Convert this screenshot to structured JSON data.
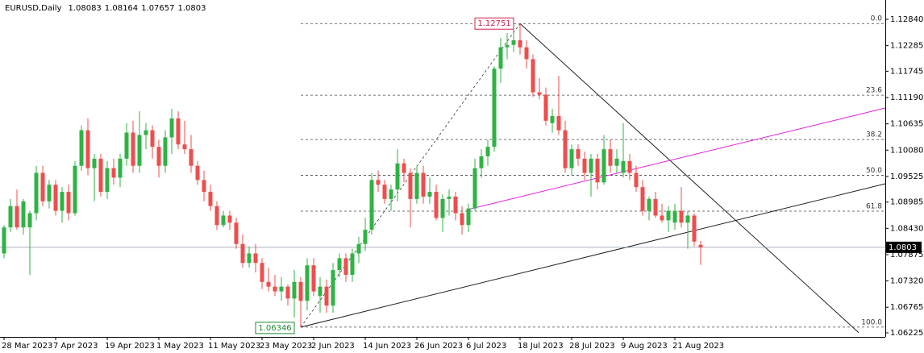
{
  "chart_data": {
    "type": "candlestick",
    "title": "EURUSD,Daily",
    "up_color": "#2fb344",
    "down_color": "#ef4d4d",
    "xlim": [
      -0.625,
      136.625
    ],
    "ylim": [
      1.0614,
      1.13248
    ],
    "yticks": [
      {
        "value": 1.1284,
        "label": "1.12840"
      },
      1.12285,
      1.11745,
      {
        "value": 1.1119,
        "label": "1.11190"
      },
      1.10635,
      {
        "value": 1.1008,
        "label": "1.10080"
      },
      1.09525,
      1.08985,
      {
        "value": 1.0843,
        "label": "1.08430"
      },
      1.07875,
      {
        "value": 1.0732,
        "label": "1.07320"
      },
      1.06765,
      1.06225
    ],
    "xticks": [
      {
        "value": 0,
        "label": "28 Mar 2023"
      },
      {
        "value": 8,
        "label": "7 Apr 2023"
      },
      {
        "value": 16,
        "label": "19 Apr 2023"
      },
      {
        "value": 24,
        "label": "1 May 2023"
      },
      {
        "value": 32,
        "label": "11 May 2023"
      },
      {
        "value": 40,
        "label": "23 May 2023"
      },
      {
        "value": 48,
        "label": "2 Jun 2023"
      },
      {
        "value": 56,
        "label": "14 Jun 2023"
      },
      {
        "value": 64,
        "label": "26 Jun 2023"
      },
      {
        "value": 72,
        "label": "6 Jul 2023"
      },
      {
        "value": 80,
        "label": "18 Jul 2023"
      },
      {
        "value": 88,
        "label": "28 Jul 2023"
      },
      {
        "value": 96,
        "label": "9 Aug 2023"
      },
      {
        "value": 104,
        "label": "21 Aug 2023"
      }
    ],
    "candles": [
      [
        1.079,
        1.085,
        1.078,
        1.0845
      ],
      [
        1.0845,
        1.0905,
        1.0835,
        1.089
      ],
      [
        1.089,
        1.0925,
        1.084,
        1.0845
      ],
      [
        1.0845,
        1.0905,
        1.083,
        1.09
      ],
      [
        1.0845,
        1.088,
        1.0745,
        1.0875
      ],
      [
        1.0875,
        1.0975,
        1.086,
        1.096
      ],
      [
        1.096,
        1.0975,
        1.089,
        1.09
      ],
      [
        1.09,
        1.0945,
        1.0885,
        1.0935
      ],
      [
        1.0935,
        1.0945,
        1.087,
        1.088
      ],
      [
        1.088,
        1.093,
        1.0855,
        1.092
      ],
      [
        1.092,
        1.0935,
        1.086,
        1.0875
      ],
      [
        1.0875,
        1.0985,
        1.087,
        1.0975
      ],
      [
        1.0975,
        1.106,
        1.0965,
        1.105
      ],
      [
        1.105,
        1.1075,
        1.0955,
        1.097
      ],
      [
        1.097,
        1.1,
        1.09,
        1.099
      ],
      [
        1.099,
        1.1,
        1.091,
        1.092
      ],
      [
        1.092,
        1.0985,
        1.0905,
        1.097
      ],
      [
        1.097,
        1.099,
        1.0935,
        1.095
      ],
      [
        1.095,
        1.1,
        1.093,
        1.099
      ],
      [
        1.099,
        1.1065,
        1.0975,
        1.1045
      ],
      [
        1.1045,
        1.107,
        1.096,
        1.0975
      ],
      [
        1.0975,
        1.109,
        1.096,
        1.104
      ],
      [
        1.104,
        1.1065,
        1.101,
        1.105
      ],
      [
        1.105,
        1.106,
        1.099,
        1.1015
      ],
      [
        1.1015,
        1.103,
        1.095,
        1.0975
      ],
      [
        1.0975,
        1.105,
        1.096,
        1.1035
      ],
      [
        1.1035,
        1.1095,
        1.1,
        1.1075
      ],
      [
        1.1075,
        1.109,
        1.101,
        1.102
      ],
      [
        1.102,
        1.107,
        1.1,
        1.101
      ],
      [
        1.101,
        1.104,
        1.096,
        1.0975
      ],
      [
        1.0975,
        1.0985,
        1.0935,
        1.0945
      ],
      [
        1.0945,
        1.0965,
        1.09,
        1.092
      ],
      [
        1.092,
        1.0935,
        1.088,
        1.089
      ],
      [
        1.089,
        1.09,
        1.084,
        1.085
      ],
      [
        1.085,
        1.088,
        1.0845,
        1.087
      ],
      [
        1.087,
        1.088,
        1.084,
        1.0855
      ],
      [
        1.0855,
        1.0865,
        1.08,
        1.081
      ],
      [
        1.081,
        1.083,
        1.076,
        1.077
      ],
      [
        1.077,
        1.0805,
        1.076,
        1.079
      ],
      [
        1.079,
        1.081,
        1.075,
        1.077
      ],
      [
        1.077,
        1.078,
        1.0715,
        1.073
      ],
      [
        1.073,
        1.076,
        1.071,
        1.072
      ],
      [
        1.072,
        1.0745,
        1.07,
        1.071
      ],
      [
        1.071,
        1.074,
        1.069,
        1.072
      ],
      [
        1.072,
        1.0725,
        1.068,
        1.0695
      ],
      [
        1.0695,
        1.0755,
        1.0655,
        1.073
      ],
      [
        1.073,
        1.074,
        1.06346,
        1.069
      ],
      [
        1.069,
        1.078,
        1.067,
        1.0765
      ],
      [
        1.0765,
        1.078,
        1.07,
        1.071
      ],
      [
        1.07,
        1.074,
        1.0665,
        1.072
      ],
      [
        1.072,
        1.0735,
        1.0665,
        1.068
      ],
      [
        1.068,
        1.077,
        1.0665,
        1.0755
      ],
      [
        1.0755,
        1.079,
        1.074,
        1.078
      ],
      [
        1.078,
        1.079,
        1.073,
        1.0745
      ],
      [
        1.0745,
        1.08,
        1.073,
        1.079
      ],
      [
        1.079,
        1.0825,
        1.077,
        1.081
      ],
      [
        1.081,
        1.0865,
        1.0795,
        1.084
      ],
      [
        1.084,
        1.096,
        1.083,
        1.0945
      ],
      [
        1.0945,
        1.0965,
        1.092,
        1.0935
      ],
      [
        1.0935,
        1.0945,
        1.0895,
        1.0905
      ],
      [
        1.0905,
        1.0935,
        1.088,
        1.0925
      ],
      [
        1.0925,
        1.101,
        1.09,
        1.098
      ],
      [
        1.098,
        1.099,
        1.094,
        1.096
      ],
      [
        1.096,
        1.097,
        1.0845,
        1.0905
      ],
      [
        1.0905,
        1.0975,
        1.0895,
        1.096
      ],
      [
        1.096,
        1.0975,
        1.0895,
        1.091
      ],
      [
        1.091,
        1.095,
        1.0895,
        1.092
      ],
      [
        1.092,
        1.0935,
        1.086,
        1.0865
      ],
      [
        1.0865,
        1.0915,
        1.0835,
        1.0905
      ],
      [
        1.0905,
        1.0925,
        1.087,
        1.091
      ],
      [
        1.091,
        1.092,
        1.086,
        1.0875
      ],
      [
        1.0875,
        1.089,
        1.083,
        1.085
      ],
      [
        1.085,
        1.0895,
        1.0835,
        1.0885
      ],
      [
        1.0885,
        1.099,
        1.088,
        1.097
      ],
      [
        1.097,
        1.101,
        1.095,
        1.0995
      ],
      [
        1.0995,
        1.103,
        1.0975,
        1.1015
      ],
      [
        1.1015,
        1.1185,
        1.1005,
        1.118
      ],
      [
        1.118,
        1.1245,
        1.115,
        1.1225
      ],
      [
        1.1225,
        1.1255,
        1.12,
        1.123
      ],
      [
        1.123,
        1.1265,
        1.1215,
        1.124
      ],
      [
        1.124,
        1.12751,
        1.121,
        1.1225
      ],
      [
        1.1225,
        1.124,
        1.118,
        1.12
      ],
      [
        1.12,
        1.121,
        1.112,
        1.113
      ],
      [
        1.113,
        1.116,
        1.1115,
        1.1125
      ],
      [
        1.1125,
        1.114,
        1.106,
        1.107
      ],
      [
        1.1065,
        1.1095,
        1.1045,
        1.108
      ],
      [
        1.108,
        1.1165,
        1.104,
        1.105
      ],
      [
        1.105,
        1.107,
        1.096,
        1.097
      ],
      [
        1.097,
        1.102,
        1.0955,
        1.101
      ],
      [
        1.101,
        1.102,
        1.0975,
        1.099
      ],
      [
        1.099,
        1.1005,
        1.0945,
        1.096
      ],
      [
        1.096,
        1.1,
        1.091,
        1.099
      ],
      [
        1.099,
        1.1,
        1.0925,
        1.094
      ],
      [
        1.094,
        1.104,
        1.0935,
        1.101
      ],
      [
        1.101,
        1.103,
        1.096,
        1.0975
      ],
      [
        1.0975,
        1.101,
        1.096,
        1.099
      ],
      [
        1.096,
        1.1065,
        1.095,
        1.0985
      ],
      [
        1.0985,
        1.1,
        1.0945,
        1.096
      ],
      [
        1.096,
        1.0975,
        1.092,
        1.093
      ],
      [
        1.093,
        1.0945,
        1.087,
        1.088
      ],
      [
        1.088,
        1.091,
        1.086,
        1.0905
      ],
      [
        1.0905,
        1.092,
        1.0865,
        1.087
      ],
      [
        1.087,
        1.0895,
        1.0855,
        1.086
      ],
      [
        1.086,
        1.089,
        1.0835,
        1.088
      ],
      [
        1.0855,
        1.0895,
        1.084,
        1.088
      ],
      [
        1.088,
        1.093,
        1.0845,
        1.0855
      ],
      [
        1.0855,
        1.088,
        1.08,
        1.087
      ],
      [
        1.087,
        1.0875,
        1.0805,
        1.0815
      ],
      [
        1.08083,
        1.08164,
        1.07657,
        1.0803
      ]
    ],
    "fibonacci": {
      "high": 1.12751,
      "low": 1.06346,
      "high_index": 80,
      "low_index": 46,
      "levels": [
        {
          "value": 0,
          "label": "0.0"
        },
        23.6,
        38.2,
        {
          "value": 50,
          "label": "50.0"
        },
        61.8,
        {
          "value": 100,
          "label": "100.0"
        }
      ]
    },
    "trendlines": [
      {
        "color": "#222222",
        "points": [
          [
            46,
            1.06346
          ],
          [
            136.625,
            1.09371
          ]
        ]
      },
      {
        "color": "#222222",
        "points": [
          [
            80,
            1.12751
          ],
          [
            132.5,
            1.0623
          ]
        ]
      },
      {
        "color": "#e020e0",
        "points": [
          [
            71.875,
            1.08826
          ],
          [
            136.625,
            1.10969
          ]
        ]
      }
    ]
  }
}
